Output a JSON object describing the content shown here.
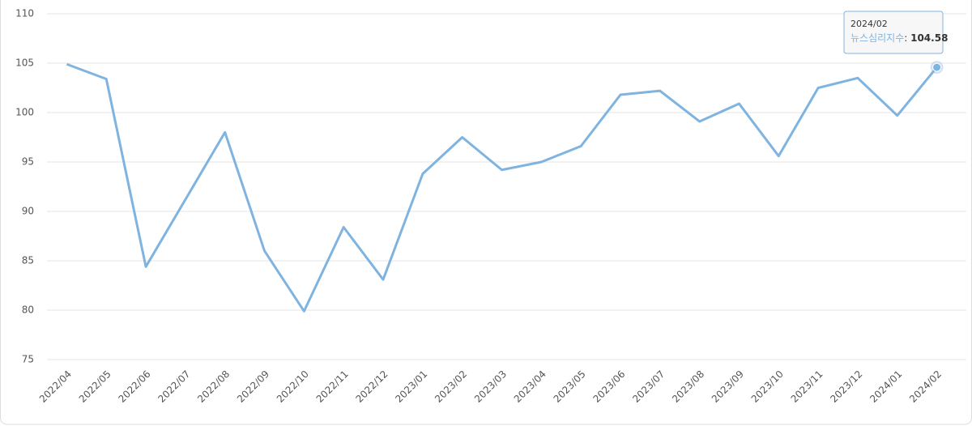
{
  "chart_data": {
    "type": "line",
    "categories": [
      "2022/04",
      "2022/05",
      "2022/06",
      "2022/07",
      "2022/08",
      "2022/09",
      "2022/10",
      "2022/11",
      "2022/12",
      "2023/01",
      "2023/02",
      "2023/03",
      "2023/04",
      "2023/05",
      "2023/06",
      "2023/07",
      "2023/08",
      "2023/09",
      "2023/10",
      "2023/11",
      "2023/12",
      "2024/01",
      "2024/02"
    ],
    "series": [
      {
        "name": "뉴스심리지수",
        "color": "#7fb3e0",
        "values": [
          104.9,
          103.4,
          84.4,
          91.2,
          98.0,
          86.0,
          79.9,
          88.4,
          83.1,
          93.8,
          97.5,
          94.2,
          95.0,
          96.6,
          101.8,
          102.2,
          99.1,
          100.9,
          95.6,
          102.5,
          103.5,
          99.7,
          104.58
        ]
      }
    ],
    "ylim": [
      75,
      110
    ],
    "yticks": [
      75,
      80,
      85,
      90,
      95,
      100,
      105,
      110
    ],
    "grid": true,
    "tooltip": {
      "index": 22,
      "separator": ": "
    }
  }
}
